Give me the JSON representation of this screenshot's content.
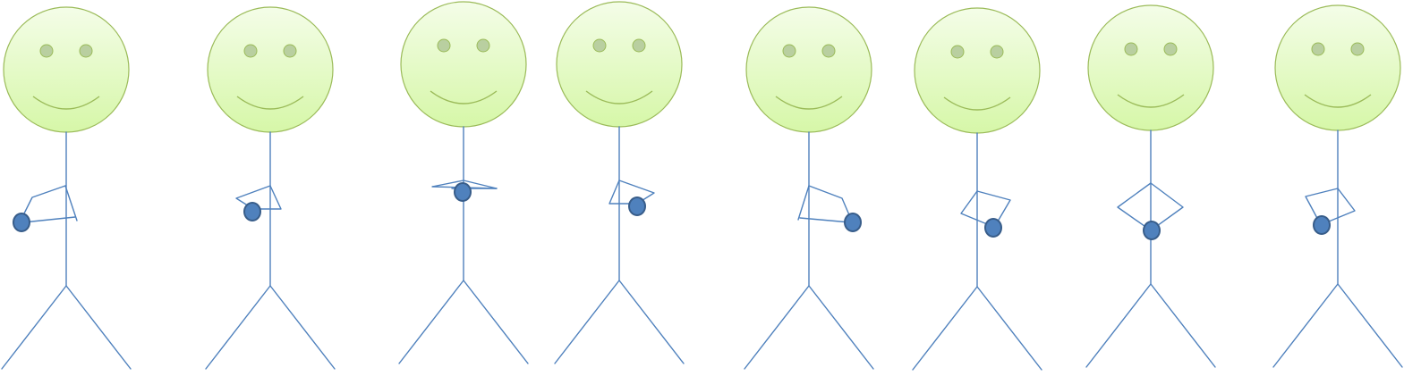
{
  "colors": {
    "background": "#ffffff",
    "head_fill_top": "#f4fde8",
    "head_fill_bottom": "#d6f7a8",
    "head_stroke": "#9bbb59",
    "eye_fill": "#b9cfa0",
    "limb_stroke": "#4f81bd",
    "hand_fill": "#4f81bd",
    "hand_stroke": "#385d8a"
  },
  "figures": [
    {
      "name": "stick-figure-1",
      "pose": "hand-left-low"
    },
    {
      "name": "stick-figure-2",
      "pose": "hand-left-mid"
    },
    {
      "name": "stick-figure-3",
      "pose": "hand-center-high"
    },
    {
      "name": "stick-figure-4",
      "pose": "hand-right-mid"
    },
    {
      "name": "stick-figure-5",
      "pose": "hand-right-low"
    },
    {
      "name": "stick-figure-6",
      "pose": "hand-right-lower"
    },
    {
      "name": "stick-figure-7",
      "pose": "hand-center-lowest"
    },
    {
      "name": "stick-figure-8",
      "pose": "hand-left-low"
    }
  ]
}
